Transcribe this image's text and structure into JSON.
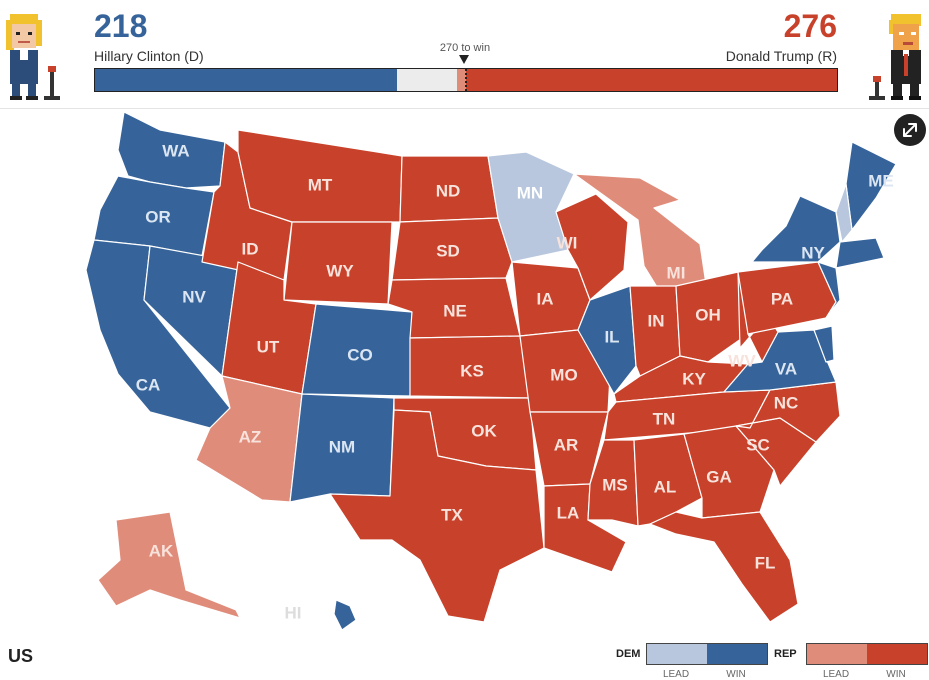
{
  "header": {
    "dem": {
      "count": "218",
      "name": "Hillary Clinton (D)",
      "color": "#36649a"
    },
    "rep": {
      "count": "276",
      "name": "Donald Trump (R)",
      "color": "#c8412a"
    },
    "to_win_label": "270 to win",
    "avatars": {
      "left": "clinton-avatar-icon",
      "right": "trump-avatar-icon"
    }
  },
  "tally_bar": {
    "total": 538,
    "dem_win": 218,
    "dem_lead": 0,
    "rep_lead": 6,
    "rep_win": 270,
    "threshold": 270
  },
  "colors": {
    "dem_win": "#36649a",
    "dem_lead": "#b8c7dd",
    "rep_win": "#c8412a",
    "rep_lead": "#e08c7a",
    "undecided": "#ececec"
  },
  "map": {
    "region": "US",
    "expand_icon": "expand-icon",
    "states": {
      "WA": "dem_win",
      "OR": "dem_win",
      "CA": "dem_win",
      "NV": "dem_win",
      "CO": "dem_win",
      "NM": "dem_win",
      "IL": "dem_win",
      "VA": "dem_win",
      "NY": "dem_win",
      "ME": "dem_win",
      "HI": "dem_win",
      "MN": "dem_lead",
      "NH": "dem_lead",
      "AZ": "rep_lead",
      "AK": "rep_lead",
      "MI": "rep_lead",
      "ID": "rep_win",
      "MT": "rep_win",
      "WY": "rep_win",
      "UT": "rep_win",
      "ND": "rep_win",
      "SD": "rep_win",
      "NE": "rep_win",
      "KS": "rep_win",
      "OK": "rep_win",
      "TX": "rep_win",
      "IA": "rep_win",
      "MO": "rep_win",
      "AR": "rep_win",
      "LA": "rep_win",
      "WI": "rep_win",
      "IN": "rep_win",
      "OH": "rep_win",
      "KY": "rep_win",
      "TN": "rep_win",
      "MS": "rep_win",
      "AL": "rep_win",
      "GA": "rep_win",
      "FL": "rep_win",
      "SC": "rep_win",
      "NC": "rep_win",
      "WV": "rep_win",
      "PA": "rep_win"
    }
  },
  "legend": {
    "dem_label": "DEM",
    "rep_label": "REP",
    "lead_label": "LEAD",
    "win_label": "WIN"
  }
}
